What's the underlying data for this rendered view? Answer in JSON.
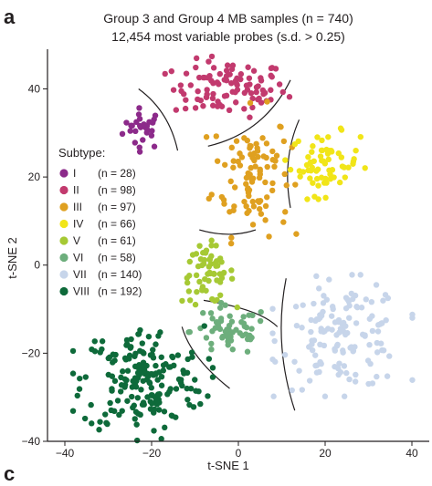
{
  "panel_label": "a",
  "next_panel_label": "c",
  "chart_data": {
    "type": "scatter",
    "title": "Group 3 and Group 4 MB samples (n = 740)",
    "subtitle": "12,454 most variable probes (s.d. > 0.25)",
    "xlabel": "t-SNE 1",
    "ylabel": "t-SNE 2",
    "xlim": [
      -44,
      44
    ],
    "ylim": [
      -40,
      49
    ],
    "xticks": [
      -40,
      -20,
      0,
      20,
      40
    ],
    "yticks": [
      -40,
      -20,
      0,
      20,
      40
    ],
    "grid": false,
    "legend_title": "Subtype:",
    "legend_position": "left",
    "series": [
      {
        "name": "I",
        "n_label": "(n = 28)",
        "color": "#8c2a8a",
        "center": [
          -22,
          31
        ],
        "spread": [
          2.3,
          2.3
        ],
        "n": 28
      },
      {
        "name": "II",
        "n_label": "(n = 98)",
        "color": "#c23a6e",
        "center": [
          -2,
          40
        ],
        "spread": [
          6.5,
          3.2
        ],
        "n": 98
      },
      {
        "name": "III",
        "n_label": "(n = 97)",
        "color": "#dfa020",
        "center": [
          3,
          21
        ],
        "spread": [
          4.5,
          7
        ],
        "n": 97
      },
      {
        "name": "IV",
        "n_label": "(n = 66)",
        "color": "#f1e518",
        "center": [
          20,
          23
        ],
        "spread": [
          4,
          3.5
        ],
        "n": 66
      },
      {
        "name": "V",
        "n_label": "(n = 61)",
        "color": "#a6c934",
        "center": [
          -7,
          -2
        ],
        "spread": [
          3,
          3.3
        ],
        "n": 61
      },
      {
        "name": "VI",
        "n_label": "(n = 58)",
        "color": "#6dae7c",
        "center": [
          -2,
          -15
        ],
        "spread": [
          4.5,
          2.8
        ],
        "n": 58
      },
      {
        "name": "VII",
        "n_label": "(n = 140)",
        "color": "#c7d5ea",
        "center": [
          24,
          -16
        ],
        "spread": [
          7,
          6
        ],
        "n": 140
      },
      {
        "name": "VIII",
        "n_label": "(n = 192)",
        "color": "#0e6a3a",
        "center": [
          -22,
          -26
        ],
        "spread": [
          7,
          6
        ],
        "n": 192
      }
    ]
  }
}
